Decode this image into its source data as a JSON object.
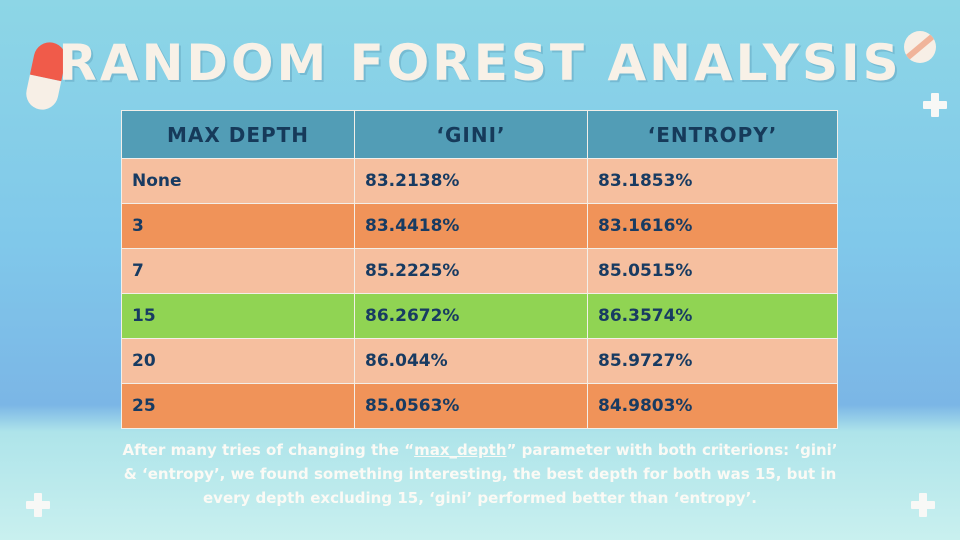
{
  "title": "Random Forest Analysis",
  "table": {
    "headers": [
      "Max Depth",
      "‘gini’",
      "‘entropy’"
    ],
    "rows": [
      {
        "depth": "None",
        "gini": "83.2138%",
        "entropy": "83.1853%",
        "style": "light"
      },
      {
        "depth": "3",
        "gini": "83.4418%",
        "entropy": "83.1616%",
        "style": "dark"
      },
      {
        "depth": "7",
        "gini": "85.2225%",
        "entropy": "85.0515%",
        "style": "light"
      },
      {
        "depth": "15",
        "gini": "86.2672%",
        "entropy": "86.3574%",
        "style": "green"
      },
      {
        "depth": "20",
        "gini": "86.044%",
        "entropy": "85.9727%",
        "style": "light"
      },
      {
        "depth": "25",
        "gini": "85.0563%",
        "entropy": "84.9803%",
        "style": "dark"
      }
    ]
  },
  "note": {
    "part1": "After many tries of changing the “",
    "param": "max_depth",
    "part2": "” parameter with both criterions: ‘gini’ & ‘entropy’, we found something interesting, the best depth for both was 15, but in every depth excluding 15, ‘gini’ performed better than ‘entropy’."
  },
  "colors": {
    "header": "#529db6",
    "row_light": "#f6bf9f",
    "row_dark": "#f09359",
    "row_best": "#90d453"
  },
  "icons": [
    "pill-icon",
    "tablet-icon",
    "plus-icon"
  ]
}
